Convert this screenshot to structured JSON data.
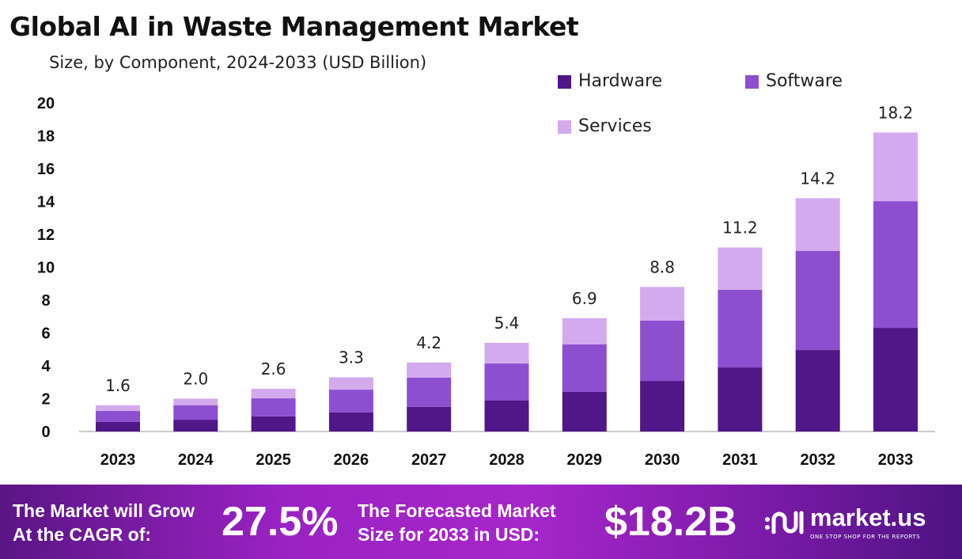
{
  "title": "Global AI in Waste Management Market",
  "subtitle": "Size, by Component, 2024-2033 (USD Billion)",
  "colors": {
    "Hardware": "#4f1787",
    "Software": "#8c4fd0",
    "Services": "#d4aaee",
    "banner": "#9b22c4"
  },
  "chart_data": {
    "type": "bar",
    "stacked": true,
    "title": "Global AI in Waste Management Market",
    "subtitle": "Size, by Component, 2024-2033 (USD Billion)",
    "categories": [
      "2023",
      "2024",
      "2025",
      "2026",
      "2027",
      "2028",
      "2029",
      "2030",
      "2031",
      "2032",
      "2033"
    ],
    "series": [
      {
        "name": "Hardware",
        "values": [
          0.58,
          0.72,
          0.92,
          1.16,
          1.5,
          1.88,
          2.41,
          3.08,
          3.9,
          4.96,
          6.31
        ]
      },
      {
        "name": "Software",
        "values": [
          0.67,
          0.87,
          1.1,
          1.39,
          1.78,
          2.26,
          2.89,
          3.67,
          4.73,
          6.03,
          7.71
        ]
      },
      {
        "name": "Services",
        "values": [
          0.35,
          0.41,
          0.58,
          0.75,
          0.92,
          1.26,
          1.6,
          2.05,
          2.57,
          3.21,
          4.18
        ]
      }
    ],
    "totals": [
      "1.6",
      "2.0",
      "2.6",
      "3.3",
      "4.2",
      "5.4",
      "6.9",
      "8.8",
      "11.2",
      "14.2",
      "18.2"
    ],
    "yticks": [
      0,
      2,
      4,
      6,
      8,
      10,
      12,
      14,
      16,
      18,
      20
    ],
    "ylim": [
      0,
      20
    ],
    "grid": false,
    "legend": "top-right"
  },
  "banner": {
    "cagr_label_1": "The Market will Grow",
    "cagr_label_2": "At the CAGR of:",
    "cagr_value": "27.5%",
    "forecast_label_1": "The Forecasted Market",
    "forecast_label_2": "Size for 2033 in USD:",
    "forecast_value": "$18.2B",
    "logo_text": "market.us",
    "logo_tagline": "ONE STOP SHOP FOR THE REPORTS"
  }
}
